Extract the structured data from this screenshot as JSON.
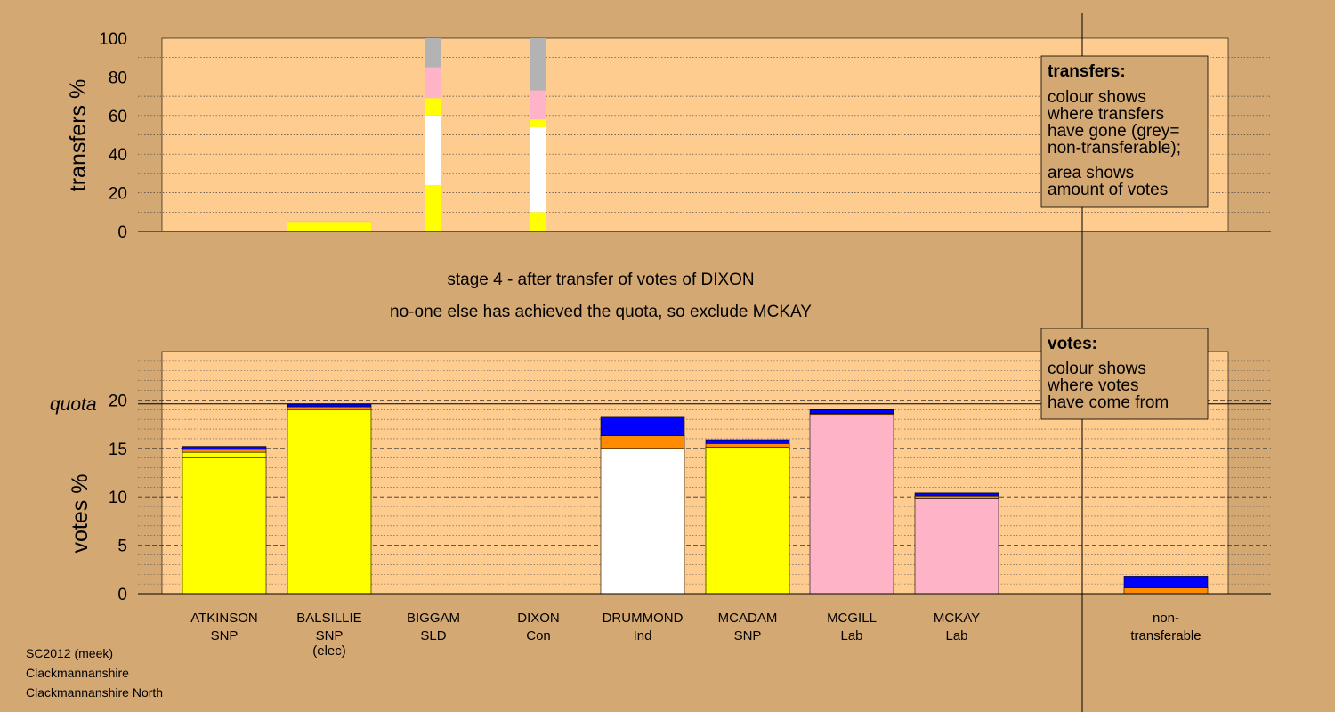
{
  "colors": {
    "background": "#d4a873",
    "plot_area": "#ffcc8f",
    "legend_box": "#d4a873",
    "SNP": "#ffff00",
    "Ind": "#ffffff",
    "Lab": "#ffb3c6",
    "Con": "#0000ff",
    "SLD": "#ff8c00",
    "nontransferable": "#b3b3b3"
  },
  "stage_text": {
    "line1": "stage 4 - after transfer of votes of DIXON",
    "line2": "no-one else has achieved the quota, so exclude MCKAY"
  },
  "legends": {
    "transfers": {
      "title": "transfers:",
      "lines": [
        "colour shows",
        "where transfers",
        "have gone (grey=",
        "non-transferable);"
      ],
      "lines2": [
        "area shows",
        "amount of votes"
      ]
    },
    "votes": {
      "title": "votes:",
      "lines": [
        "colour shows",
        "where votes",
        "have come from"
      ]
    }
  },
  "footer": [
    "SC2012 (meek)",
    "Clackmannanshire",
    "Clackmannanshire North"
  ],
  "chart_data": [
    {
      "type": "bar",
      "stacked": true,
      "ylabel": "transfers %",
      "ylim": [
        0,
        100
      ],
      "yticks": [
        0,
        20,
        40,
        60,
        80,
        100
      ],
      "categories": [
        "ATKINSON",
        "BALSILLIE",
        "BIGGAM",
        "DIXON",
        "DRUMMOND",
        "MCADAM",
        "MCGILL",
        "MCKAY",
        "non-transferable"
      ],
      "bars": [
        {
          "category": "ATKINSON",
          "segments": []
        },
        {
          "category": "BALSILLIE",
          "segments": [
            {
              "party": "SNP",
              "value": 5
            },
            {
              "party": "Lab",
              "value": 0.5
            }
          ]
        },
        {
          "category": "BIGGAM",
          "segments": [
            {
              "party": "SNP",
              "value": 24
            },
            {
              "party": "Ind",
              "value": 36
            },
            {
              "party": "SNP",
              "value": 9
            },
            {
              "party": "Lab",
              "value": 16
            },
            {
              "party": "nontransferable",
              "value": 15
            }
          ]
        },
        {
          "category": "DIXON",
          "segments": [
            {
              "party": "SNP",
              "value": 10
            },
            {
              "party": "Ind",
              "value": 44
            },
            {
              "party": "SNP",
              "value": 4
            },
            {
              "party": "Lab",
              "value": 15
            },
            {
              "party": "nontransferable",
              "value": 27
            }
          ]
        },
        {
          "category": "DRUMMOND",
          "segments": []
        },
        {
          "category": "MCADAM",
          "segments": []
        },
        {
          "category": "MCGILL",
          "segments": []
        },
        {
          "category": "MCKAY",
          "segments": []
        },
        {
          "category": "non-transferable",
          "segments": []
        }
      ]
    },
    {
      "type": "bar",
      "stacked": true,
      "ylabel": "votes %",
      "ylim": [
        0,
        25
      ],
      "yticks": [
        0,
        5,
        10,
        15,
        20
      ],
      "quota": 19.6,
      "quota_label": "quota",
      "candidates": [
        {
          "name": "ATKINSON",
          "party": "SNP",
          "note": ""
        },
        {
          "name": "BALSILLIE",
          "party": "SNP",
          "note": "(elec)"
        },
        {
          "name": "BIGGAM",
          "party": "SLD",
          "note": ""
        },
        {
          "name": "DIXON",
          "party": "Con",
          "note": ""
        },
        {
          "name": "DRUMMOND",
          "party": "Ind",
          "note": ""
        },
        {
          "name": "MCADAM",
          "party": "SNP",
          "note": ""
        },
        {
          "name": "MCGILL",
          "party": "Lab",
          "note": ""
        },
        {
          "name": "MCKAY",
          "party": "Lab",
          "note": ""
        }
      ],
      "nontransferable": {
        "label_line1": "non-",
        "label_line2": "transferable"
      },
      "bars": [
        {
          "category": "ATKINSON",
          "segments": [
            {
              "party": "SNP",
              "value": 14.0
            },
            {
              "party": "SNP",
              "value": 0.6
            },
            {
              "party": "SLD",
              "value": 0.3
            },
            {
              "party": "Con",
              "value": 0.3
            }
          ]
        },
        {
          "category": "BALSILLIE",
          "segments": [
            {
              "party": "SNP",
              "value": 19.0
            },
            {
              "party": "SLD",
              "value": 0.3
            },
            {
              "party": "Con",
              "value": 0.3
            }
          ]
        },
        {
          "category": "BIGGAM",
          "segments": []
        },
        {
          "category": "DIXON",
          "segments": []
        },
        {
          "category": "DRUMMOND",
          "segments": [
            {
              "party": "Ind",
              "value": 15.0
            },
            {
              "party": "SLD",
              "value": 1.3
            },
            {
              "party": "Con",
              "value": 2.0
            }
          ]
        },
        {
          "category": "MCADAM",
          "segments": [
            {
              "party": "SNP",
              "value": 15.1
            },
            {
              "party": "SLD",
              "value": 0.4
            },
            {
              "party": "Con",
              "value": 0.4
            }
          ]
        },
        {
          "category": "MCGILL",
          "segments": [
            {
              "party": "Lab",
              "value": 18.5
            },
            {
              "party": "SLD",
              "value": 0.1
            },
            {
              "party": "Con",
              "value": 0.4
            }
          ]
        },
        {
          "category": "MCKAY",
          "segments": [
            {
              "party": "Lab",
              "value": 9.8
            },
            {
              "party": "SLD",
              "value": 0.3
            },
            {
              "party": "Con",
              "value": 0.3
            }
          ]
        },
        {
          "category": "non-transferable",
          "segments": [
            {
              "party": "SLD",
              "value": 0.6
            },
            {
              "party": "Con",
              "value": 1.2
            }
          ]
        }
      ]
    }
  ]
}
